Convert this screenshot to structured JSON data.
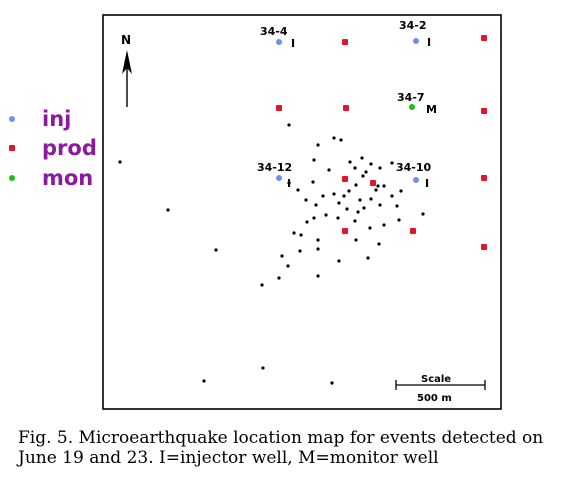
{
  "colors": {
    "injector": "#6f8ff5",
    "producer": "#e5132b",
    "monitor": "#16c21a",
    "legend_text": "#8b1aa0",
    "quake": "#000000",
    "frame": "#000000"
  },
  "legend": [
    {
      "key": "injector",
      "label": "inj"
    },
    {
      "key": "producer",
      "label": "prod"
    },
    {
      "key": "monitor",
      "label": "mon"
    }
  ],
  "map": {
    "north_label": "N",
    "scale_label": "Scale",
    "scale_distance": "500 m",
    "wells": [
      {
        "name": "34-4",
        "type": "injector",
        "type_label": "I"
      },
      {
        "name": "34-2",
        "type": "injector",
        "type_label": "I"
      },
      {
        "name": "34-7",
        "type": "monitor",
        "type_label": "M"
      },
      {
        "name": "34-12",
        "type": "injector",
        "type_label": "I"
      },
      {
        "name": "34-10",
        "type": "injector",
        "type_label": "I"
      }
    ],
    "producer_count": 11
  },
  "caption": {
    "line1": "Fig. 5.  Microearthquake location map for events detected on",
    "line2": "June 19 and 23.  I=injector well, M=monitor well"
  }
}
